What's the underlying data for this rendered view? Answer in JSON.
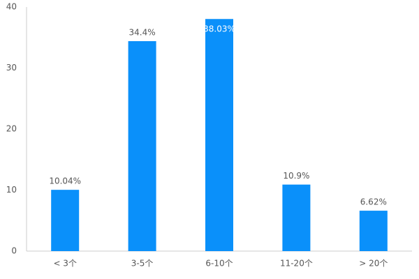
{
  "chart_data": {
    "type": "bar",
    "categories": [
      "< 3个",
      "3-5个",
      "6-10个",
      "11-20个",
      "> 20个"
    ],
    "values": [
      10.04,
      34.4,
      38.03,
      10.9,
      6.62
    ],
    "value_labels": [
      "10.04%",
      "34.4%",
      "38.03%",
      "10.9%",
      "6.62%"
    ],
    "color": "#0a90fa",
    "ylim": [
      0,
      40
    ],
    "yticks": [
      0,
      10,
      20,
      30,
      40
    ],
    "grid": false
  }
}
